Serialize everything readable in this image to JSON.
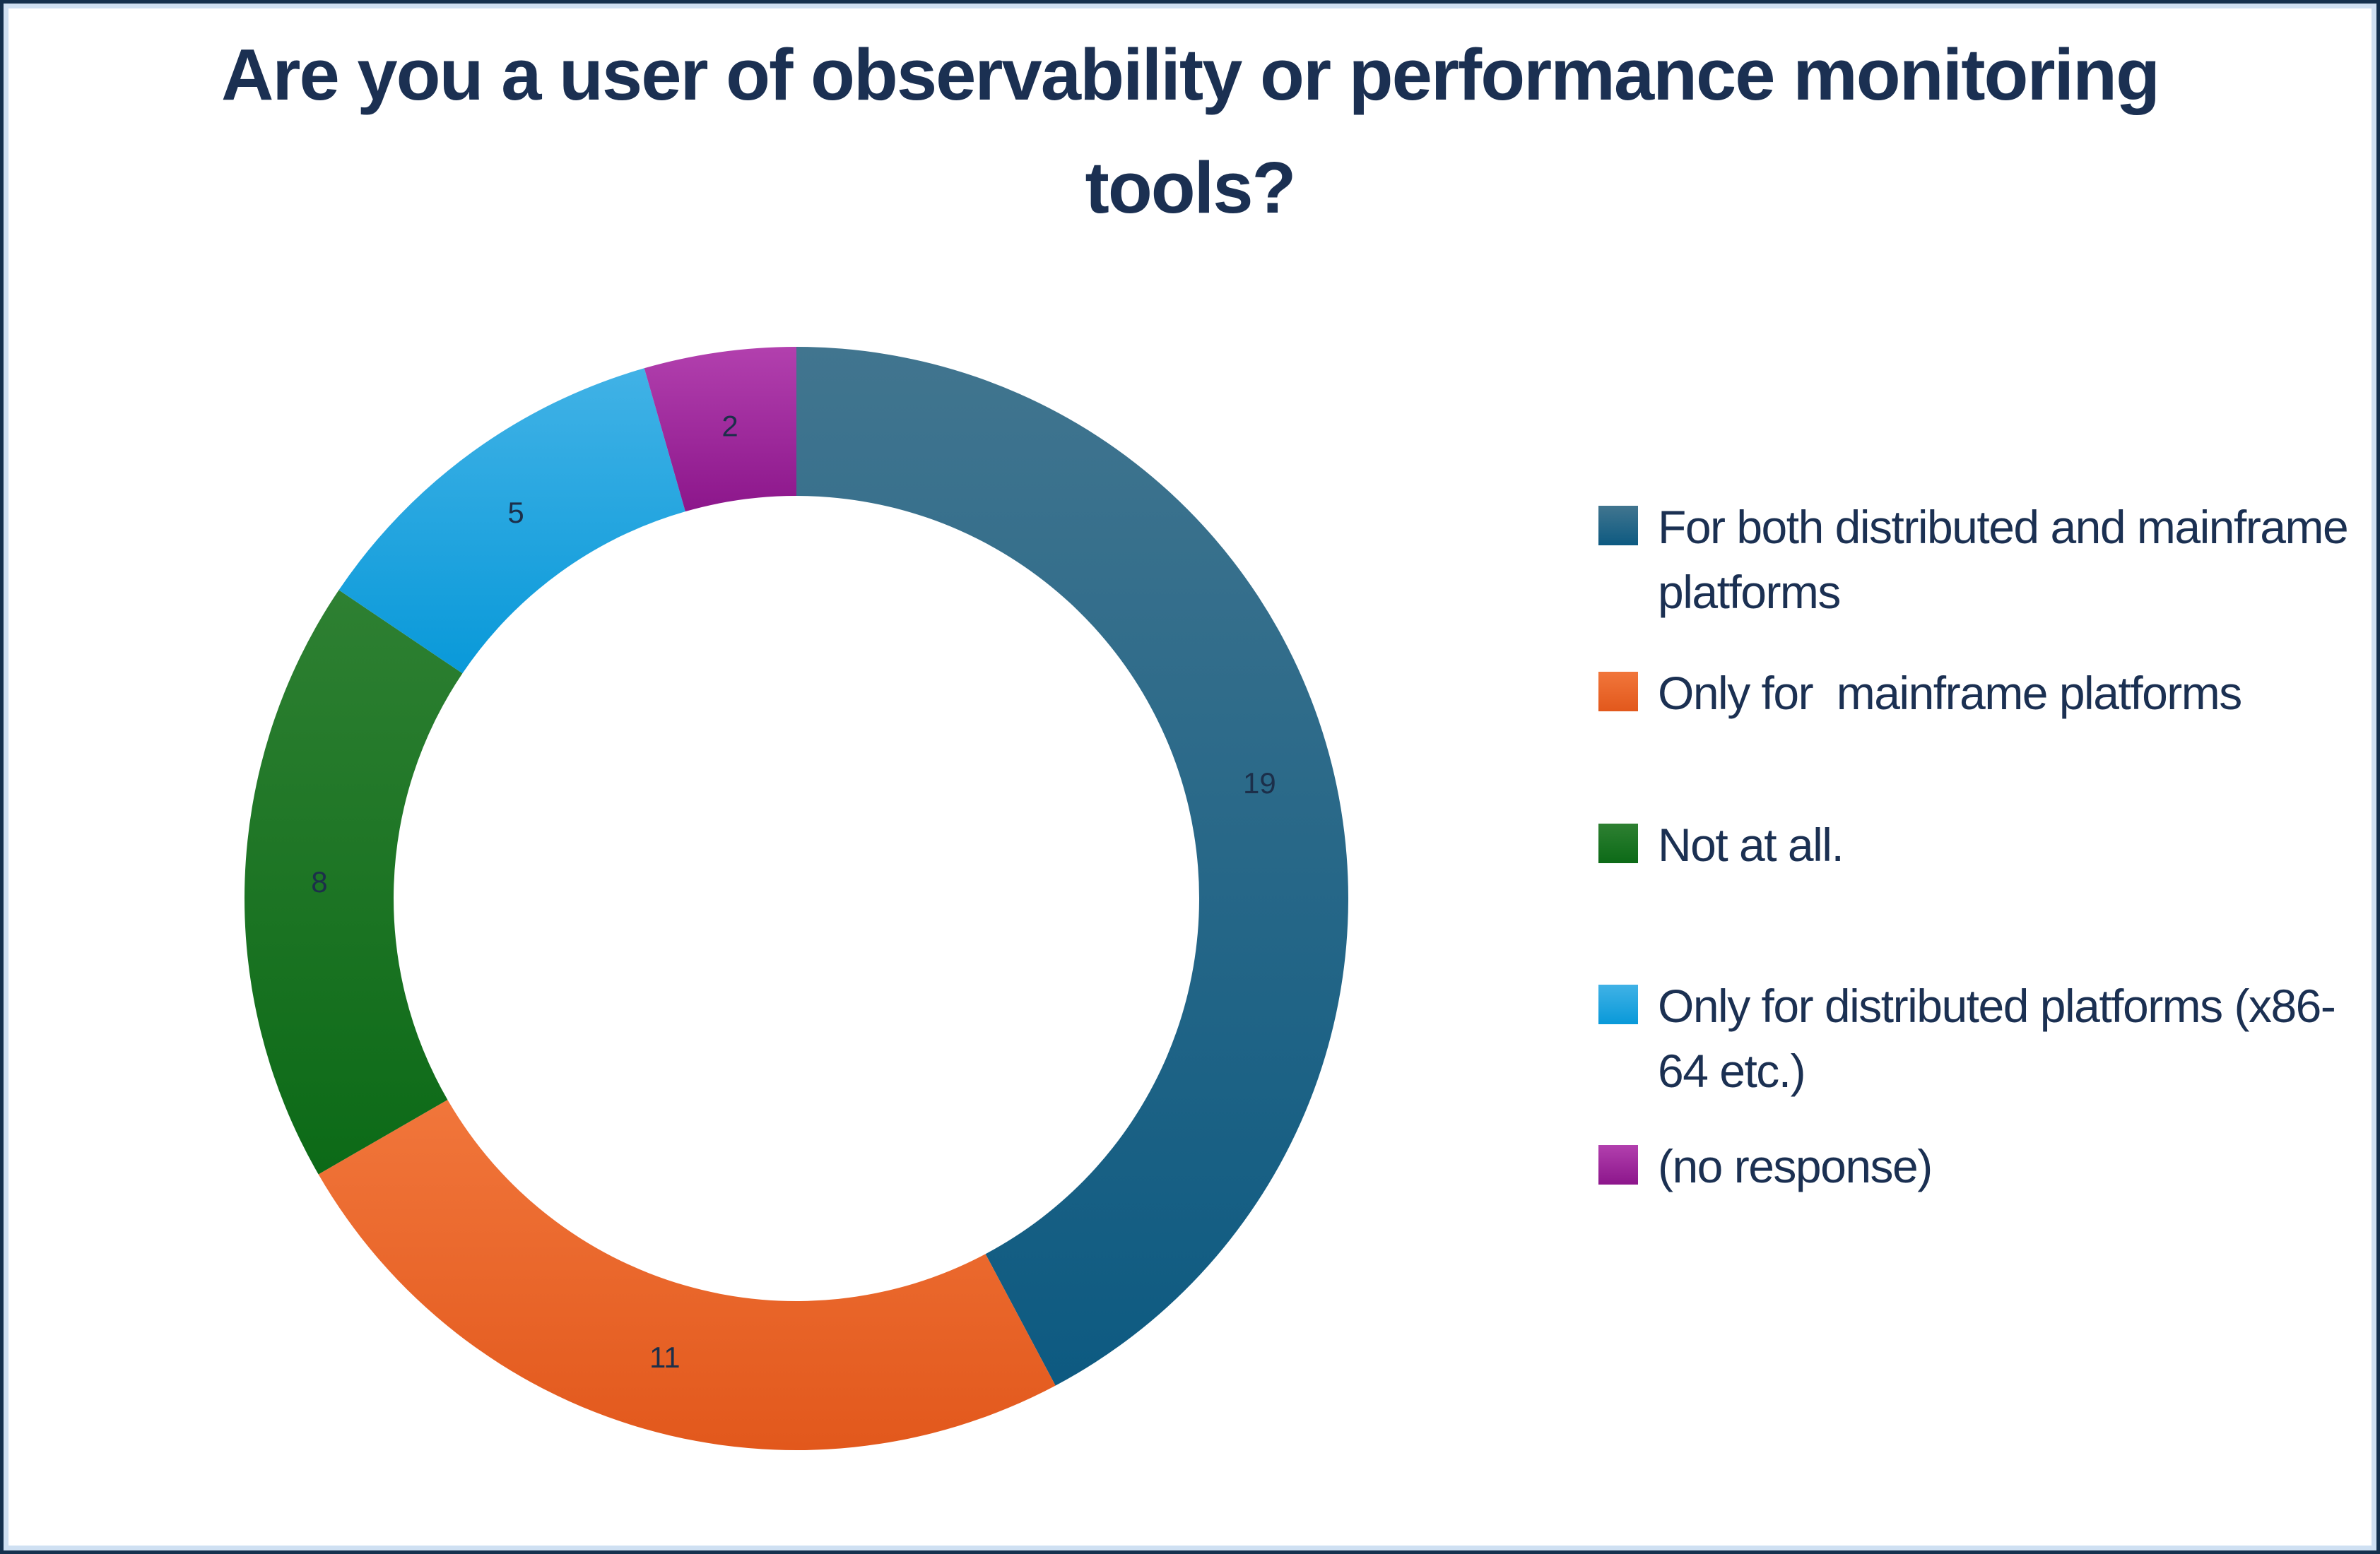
{
  "title": {
    "line1": "Are you a user of observability or performance monitoring",
    "line2": "tools?",
    "color": "#1b3052"
  },
  "frame": {
    "outer_border_color": "#15314e",
    "inner_border_color": "#cfe0f2"
  },
  "chart_data": {
    "type": "pie",
    "subtype": "donut",
    "title": "Are you a user of observability or performance monitoring tools?",
    "total": 45,
    "start_angle_deg": 0,
    "direction": "clockwise",
    "hole_ratio": 0.73,
    "legend_position": "right",
    "value_label_color": "#1c2f4a",
    "series": [
      {
        "label": "For both distributed and mainframe platforms",
        "value": 19,
        "color_light": "#41758f",
        "color_dark": "#0d5a81"
      },
      {
        "label": "Only for  mainframe platforms",
        "value": 11,
        "color_light": "#f1763b",
        "color_dark": "#e2581c"
      },
      {
        "label": "Not at all.",
        "value": 8,
        "color_light": "#2e8032",
        "color_dark": "#0c6a17"
      },
      {
        "label": "Only for distributed platforms (x86-64 etc.)",
        "value": 5,
        "color_light": "#41b2e6",
        "color_dark": "#0999d9"
      },
      {
        "label": "(no response)",
        "value": 2,
        "color_light": "#b240ae",
        "color_dark": "#8c168b"
      }
    ]
  }
}
